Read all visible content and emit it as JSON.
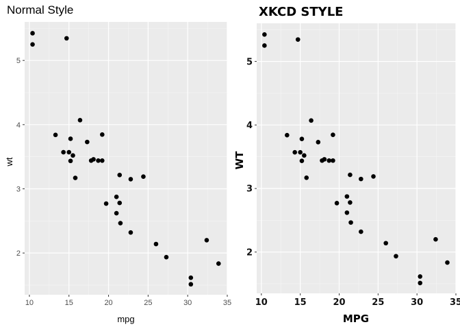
{
  "chart_data": [
    {
      "type": "scatter",
      "title": "Normal Style",
      "xlabel": "mpg",
      "ylabel": "wt",
      "xlim": [
        9.4,
        35.0
      ],
      "ylim": [
        1.35,
        5.6
      ],
      "x_ticks": [
        10,
        15,
        20,
        25,
        30,
        35
      ],
      "x_tick_labels": [
        "10",
        "15",
        "20",
        "25",
        "30",
        "35"
      ],
      "y_ticks": [
        2,
        3,
        4,
        5
      ],
      "y_tick_labels": [
        "2",
        "3",
        "4",
        "5"
      ],
      "grid": true,
      "background": "#ebebeb",
      "point_color": "#000000",
      "points": [
        {
          "x": 21.0,
          "y": 2.62
        },
        {
          "x": 21.0,
          "y": 2.875
        },
        {
          "x": 22.8,
          "y": 2.32
        },
        {
          "x": 21.4,
          "y": 3.215
        },
        {
          "x": 18.7,
          "y": 3.44
        },
        {
          "x": 18.1,
          "y": 3.46
        },
        {
          "x": 14.3,
          "y": 3.57
        },
        {
          "x": 24.4,
          "y": 3.19
        },
        {
          "x": 22.8,
          "y": 3.15
        },
        {
          "x": 19.2,
          "y": 3.44
        },
        {
          "x": 17.8,
          "y": 3.44
        },
        {
          "x": 16.4,
          "y": 4.07
        },
        {
          "x": 17.3,
          "y": 3.73
        },
        {
          "x": 15.2,
          "y": 3.78
        },
        {
          "x": 10.4,
          "y": 5.25
        },
        {
          "x": 10.4,
          "y": 5.424
        },
        {
          "x": 14.7,
          "y": 5.345
        },
        {
          "x": 32.4,
          "y": 2.2
        },
        {
          "x": 30.4,
          "y": 1.615
        },
        {
          "x": 33.9,
          "y": 1.835
        },
        {
          "x": 21.5,
          "y": 2.465
        },
        {
          "x": 15.5,
          "y": 3.52
        },
        {
          "x": 15.2,
          "y": 3.435
        },
        {
          "x": 13.3,
          "y": 3.84
        },
        {
          "x": 19.2,
          "y": 3.845
        },
        {
          "x": 27.3,
          "y": 1.935
        },
        {
          "x": 26.0,
          "y": 2.14
        },
        {
          "x": 30.4,
          "y": 1.513
        },
        {
          "x": 15.8,
          "y": 3.17
        },
        {
          "x": 19.7,
          "y": 2.77
        },
        {
          "x": 15.0,
          "y": 3.57
        },
        {
          "x": 21.4,
          "y": 2.78
        }
      ]
    },
    {
      "type": "scatter",
      "title": "XKCD STYLE",
      "xlabel": "MPG",
      "ylabel": "WT",
      "xlim": [
        9.4,
        35.0
      ],
      "ylim": [
        1.35,
        5.6
      ],
      "x_ticks": [
        10,
        15,
        20,
        25,
        30,
        35
      ],
      "x_tick_labels": [
        "10",
        "15",
        "20",
        "25",
        "30",
        "35"
      ],
      "y_ticks": [
        2,
        3,
        4,
        5
      ],
      "y_tick_labels": [
        "2",
        "3",
        "4",
        "5"
      ],
      "grid": true,
      "background": "#ebebeb",
      "point_color": "#000000",
      "points": [
        {
          "x": 21.0,
          "y": 2.62
        },
        {
          "x": 21.0,
          "y": 2.875
        },
        {
          "x": 22.8,
          "y": 2.32
        },
        {
          "x": 21.4,
          "y": 3.215
        },
        {
          "x": 18.7,
          "y": 3.44
        },
        {
          "x": 18.1,
          "y": 3.46
        },
        {
          "x": 14.3,
          "y": 3.57
        },
        {
          "x": 24.4,
          "y": 3.19
        },
        {
          "x": 22.8,
          "y": 3.15
        },
        {
          "x": 19.2,
          "y": 3.44
        },
        {
          "x": 17.8,
          "y": 3.44
        },
        {
          "x": 16.4,
          "y": 4.07
        },
        {
          "x": 17.3,
          "y": 3.73
        },
        {
          "x": 15.2,
          "y": 3.78
        },
        {
          "x": 10.4,
          "y": 5.25
        },
        {
          "x": 10.4,
          "y": 5.424
        },
        {
          "x": 14.7,
          "y": 5.345
        },
        {
          "x": 32.4,
          "y": 2.2
        },
        {
          "x": 30.4,
          "y": 1.615
        },
        {
          "x": 33.9,
          "y": 1.835
        },
        {
          "x": 21.5,
          "y": 2.465
        },
        {
          "x": 15.5,
          "y": 3.52
        },
        {
          "x": 15.2,
          "y": 3.435
        },
        {
          "x": 13.3,
          "y": 3.84
        },
        {
          "x": 19.2,
          "y": 3.845
        },
        {
          "x": 27.3,
          "y": 1.935
        },
        {
          "x": 26.0,
          "y": 2.14
        },
        {
          "x": 30.4,
          "y": 1.513
        },
        {
          "x": 15.8,
          "y": 3.17
        },
        {
          "x": 19.7,
          "y": 2.77
        },
        {
          "x": 15.0,
          "y": 3.57
        },
        {
          "x": 21.4,
          "y": 2.78
        }
      ]
    }
  ]
}
